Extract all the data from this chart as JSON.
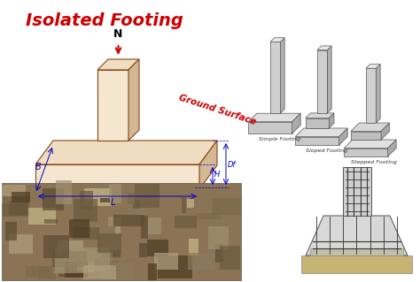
{
  "title": "Isolated Footing",
  "title_color": "#cc0000",
  "title_fontsize": 14,
  "bg_color": "#ffffff",
  "footing_types": [
    "Simple Footing",
    "Sloped Footing",
    "Stepped Footing"
  ],
  "dim_labels": [
    "B",
    "L",
    "H",
    "Df"
  ],
  "ground_surface_label": "Ground Surface",
  "ground_surface_color": "#cc0000",
  "arrow_color": "#cc0000",
  "dim_color": "#0000cc",
  "draw_color": "#8b4513",
  "N_label": "N",
  "fig_width": 4.74,
  "fig_height": 3.19
}
